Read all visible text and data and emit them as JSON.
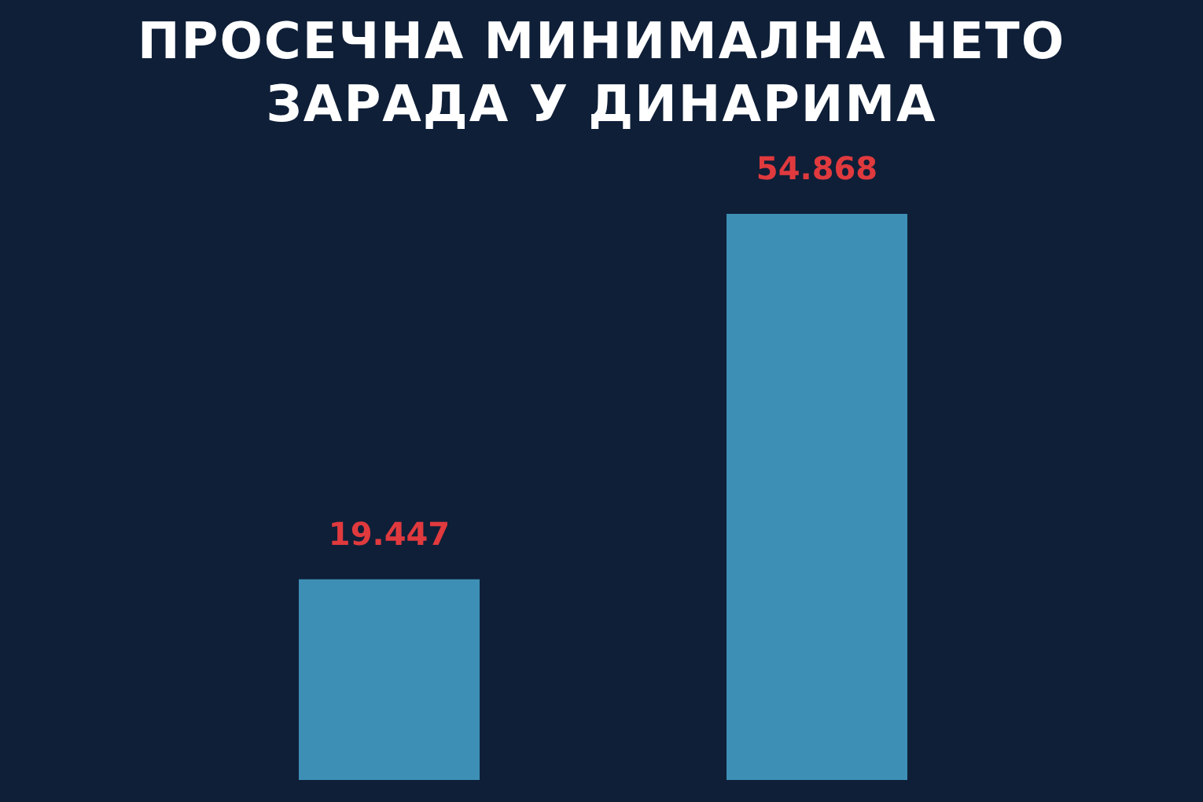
{
  "chart_data": {
    "type": "bar",
    "title": "ПРОСЕЧНА МИНИМАЛНА НЕТО ЗАРАДА У ДИНАРИМА",
    "categories": [
      null,
      null
    ],
    "values": [
      19447,
      54868
    ],
    "value_labels": [
      "19.447",
      "54.868"
    ],
    "color": "#3d8fb5"
  }
}
